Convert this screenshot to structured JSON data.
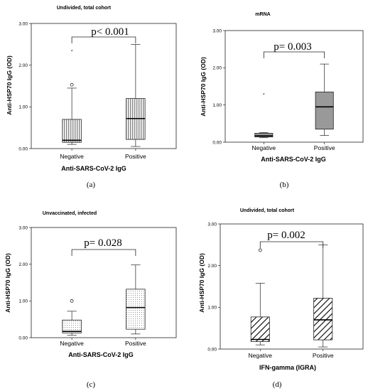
{
  "figure": {
    "panels": [
      {
        "letter": "(a)",
        "title": "Undivided, total cohort",
        "ylabel": "Anti-HSP70 IgG (OD)",
        "xlabel": "Anti-SARS-CoV-2 IgG",
        "pvalue": "p< 0.001"
      },
      {
        "letter": "(b)",
        "title": "mRNA",
        "ylabel": "Anti-HSP70 IgG (OD)",
        "xlabel": "Anti-SARS-CoV-2 IgG",
        "pvalue": "p= 0.003"
      },
      {
        "letter": "(c)",
        "title": "Unvaccinated, infected",
        "ylabel": "Anti-HSP70 IgG (OD)",
        "xlabel": "Anti-SARS-CoV-2 IgG",
        "pvalue": "p= 0.028"
      },
      {
        "letter": "(d)",
        "title": "Undivided, total cohort",
        "ylabel": "Anti-HSP70 IgG (OD)",
        "xlabel": "IFN-gamma (IGRA)",
        "pvalue": "p= 0.002"
      }
    ]
  },
  "chart_data": [
    {
      "type": "boxplot",
      "title": "Undivided, total cohort",
      "xlabel": "Anti-SARS-CoV-2 IgG",
      "ylabel": "Anti-HSP70 IgG (OD)",
      "categories": [
        "Negative",
        "Positive"
      ],
      "ylim": [
        0,
        3
      ],
      "yticks": [
        "0.00",
        "1.00",
        "2.00",
        "3.00"
      ],
      "boxes": [
        {
          "category": "Negative",
          "min": 0.1,
          "q1": 0.15,
          "median": 0.2,
          "q3": 0.7,
          "max": 1.45,
          "fill": "vertical-lines",
          "outliers": [
            {
              "value": 1.53,
              "marker": "circle"
            },
            {
              "value": 2.35,
              "marker": "star"
            }
          ]
        },
        {
          "category": "Positive",
          "min": 0.05,
          "q1": 0.22,
          "median": 0.72,
          "q3": 1.2,
          "max": 2.5,
          "fill": "vertical-lines",
          "outliers": []
        }
      ],
      "annotation": "p< 0.001"
    },
    {
      "type": "boxplot",
      "title": "mRNA",
      "xlabel": "Anti-SARS-CoV-2 IgG",
      "ylabel": "Anti-HSP70 IgG (OD)",
      "categories": [
        "Negative",
        "Positive"
      ],
      "ylim": [
        0,
        3
      ],
      "yticks": [
        "0.00",
        "1.00",
        "2.00",
        "3.00"
      ],
      "boxes": [
        {
          "category": "Negative",
          "min": 0.12,
          "q1": 0.14,
          "median": 0.17,
          "q3": 0.24,
          "max": 0.26,
          "fill": "#999999",
          "outliers": [
            {
              "value": 1.3,
              "marker": "star"
            }
          ]
        },
        {
          "category": "Positive",
          "min": 0.18,
          "q1": 0.35,
          "median": 0.95,
          "q3": 1.35,
          "max": 2.1,
          "fill": "#999999",
          "outliers": []
        }
      ],
      "annotation": "p= 0.003"
    },
    {
      "type": "boxplot",
      "title": "Unvaccinated, infected",
      "xlabel": "Anti-SARS-CoV-2 IgG",
      "ylabel": "Anti-HSP70 IgG (OD)",
      "categories": [
        "Negative",
        "Positive"
      ],
      "ylim": [
        0,
        3
      ],
      "yticks": [
        "0.00",
        "1.00",
        "2.00",
        "3.00"
      ],
      "boxes": [
        {
          "category": "Negative",
          "min": 0.07,
          "q1": 0.13,
          "median": 0.17,
          "q3": 0.48,
          "max": 0.72,
          "fill": "dots",
          "outliers": [
            {
              "value": 1.0,
              "marker": "circle"
            }
          ]
        },
        {
          "category": "Positive",
          "min": 0.1,
          "q1": 0.23,
          "median": 0.82,
          "q3": 1.32,
          "max": 1.98,
          "fill": "dots",
          "outliers": []
        }
      ],
      "annotation": "p= 0.028"
    },
    {
      "type": "boxplot",
      "title": "Undivided, total cohort",
      "xlabel": "IFN-gamma (IGRA)",
      "ylabel": "Anti-HSP70 IgG (OD)",
      "categories": [
        "Negative",
        "Positive"
      ],
      "ylim": [
        0,
        3
      ],
      "yticks": [
        "0.00",
        "1.00",
        "2.00",
        "3.00"
      ],
      "boxes": [
        {
          "category": "Negative",
          "min": 0.1,
          "q1": 0.18,
          "median": 0.23,
          "q3": 0.77,
          "max": 1.58,
          "fill": "diagonal-lines",
          "outliers": [
            {
              "value": 2.37,
              "marker": "circle"
            }
          ]
        },
        {
          "category": "Positive",
          "min": 0.05,
          "q1": 0.22,
          "median": 0.7,
          "q3": 1.22,
          "max": 2.5,
          "fill": "diagonal-lines",
          "outliers": []
        }
      ],
      "annotation": "p= 0.002"
    }
  ]
}
